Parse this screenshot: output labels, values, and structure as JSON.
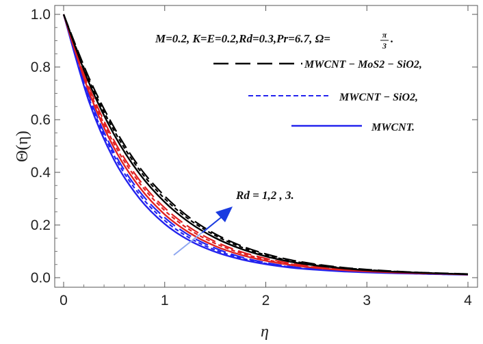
{
  "chart_data": {
    "type": "line",
    "title": "",
    "xlabel": "η",
    "ylabel": "Θ(η)",
    "xlim": [
      0,
      4
    ],
    "ylim": [
      0,
      1.0
    ],
    "grid": false,
    "x_ticks": [
      "0",
      "1",
      "2",
      "3",
      "4"
    ],
    "y_ticks": [
      "0.0",
      "0.2",
      "0.4",
      "0.6",
      "0.8",
      "1.0"
    ],
    "parameters_text": "M=0.2, K=E=0.2,Rd=0.3,Pr=6.7, Ω=",
    "parameters_fraction": {
      "numerator": "π",
      "denominator": "3"
    },
    "parameters_end": ".",
    "legend": [
      {
        "label": "MWCNT − MoS2 − SiO2,",
        "color": "#000000",
        "dash": "long-dashed"
      },
      {
        "label": "MWCNT − SiO2,",
        "color": "#2222ee",
        "dash": "short-dashed"
      },
      {
        "label": "MWCNT.",
        "color": "#2222ee",
        "dash": "solid"
      }
    ],
    "annotation": {
      "text": "Rd = 1,2 , 3.",
      "arrow_color": "#1a3be0",
      "direction": "increasing"
    },
    "x": [
      0,
      0.25,
      0.5,
      0.75,
      1.0,
      1.25,
      1.5,
      1.75,
      2.0,
      2.25,
      2.5,
      2.75,
      3.0,
      3.25,
      3.5,
      3.75,
      4.0
    ],
    "series": [
      {
        "name": "MWCNT − MoS2 − SiO2, Rd=1",
        "color": "#2222ee",
        "style": "long-dashed",
        "values": [
          1.0,
          0.691,
          0.475,
          0.328,
          0.228,
          0.159,
          0.112,
          0.079,
          0.057,
          0.042,
          0.032,
          0.025,
          0.021,
          0.018,
          0.016,
          0.014,
          0.012
        ]
      },
      {
        "name": "MWCNT − SiO2, Rd=1",
        "color": "#2222ee",
        "style": "short-dashed",
        "values": [
          1.0,
          0.682,
          0.463,
          0.316,
          0.217,
          0.15,
          0.105,
          0.075,
          0.054,
          0.04,
          0.031,
          0.025,
          0.021,
          0.018,
          0.015,
          0.013,
          0.012
        ]
      },
      {
        "name": "MWCNT, Rd=1",
        "color": "#2222ee",
        "style": "solid",
        "values": [
          1.0,
          0.67,
          0.447,
          0.301,
          0.204,
          0.14,
          0.098,
          0.07,
          0.051,
          0.038,
          0.03,
          0.024,
          0.02,
          0.017,
          0.015,
          0.013,
          0.011
        ]
      },
      {
        "name": "MWCNT − MoS2 − SiO2, Rd=2",
        "color": "#e02020",
        "style": "long-dashed",
        "values": [
          1.0,
          0.726,
          0.52,
          0.371,
          0.265,
          0.19,
          0.137,
          0.099,
          0.073,
          0.054,
          0.041,
          0.032,
          0.026,
          0.021,
          0.018,
          0.015,
          0.013
        ]
      },
      {
        "name": "MWCNT − SiO2, Rd=2",
        "color": "#e02020",
        "style": "short-dashed",
        "values": [
          1.0,
          0.717,
          0.508,
          0.36,
          0.255,
          0.181,
          0.13,
          0.094,
          0.069,
          0.051,
          0.039,
          0.031,
          0.025,
          0.021,
          0.017,
          0.015,
          0.013
        ]
      },
      {
        "name": "MWCNT, Rd=2",
        "color": "#e02020",
        "style": "solid",
        "values": [
          1.0,
          0.706,
          0.492,
          0.344,
          0.24,
          0.169,
          0.12,
          0.087,
          0.064,
          0.048,
          0.037,
          0.029,
          0.024,
          0.02,
          0.017,
          0.015,
          0.012
        ]
      },
      {
        "name": "MWCNT − MoS2 − SiO2, Rd=3",
        "color": "#000000",
        "style": "long-dashed",
        "values": [
          1.0,
          0.76,
          0.57,
          0.42,
          0.31,
          0.227,
          0.166,
          0.122,
          0.09,
          0.067,
          0.051,
          0.039,
          0.031,
          0.025,
          0.02,
          0.017,
          0.014
        ]
      },
      {
        "name": "MWCNT − SiO2, Rd=3",
        "color": "#000000",
        "style": "short-dashed",
        "values": [
          1.0,
          0.751,
          0.558,
          0.409,
          0.3,
          0.219,
          0.16,
          0.117,
          0.086,
          0.064,
          0.049,
          0.038,
          0.03,
          0.024,
          0.02,
          0.016,
          0.014
        ]
      },
      {
        "name": "MWCNT, Rd=3",
        "color": "#000000",
        "style": "solid",
        "values": [
          1.0,
          0.741,
          0.543,
          0.395,
          0.287,
          0.208,
          0.151,
          0.11,
          0.081,
          0.06,
          0.046,
          0.036,
          0.028,
          0.023,
          0.019,
          0.016,
          0.013
        ]
      }
    ]
  }
}
